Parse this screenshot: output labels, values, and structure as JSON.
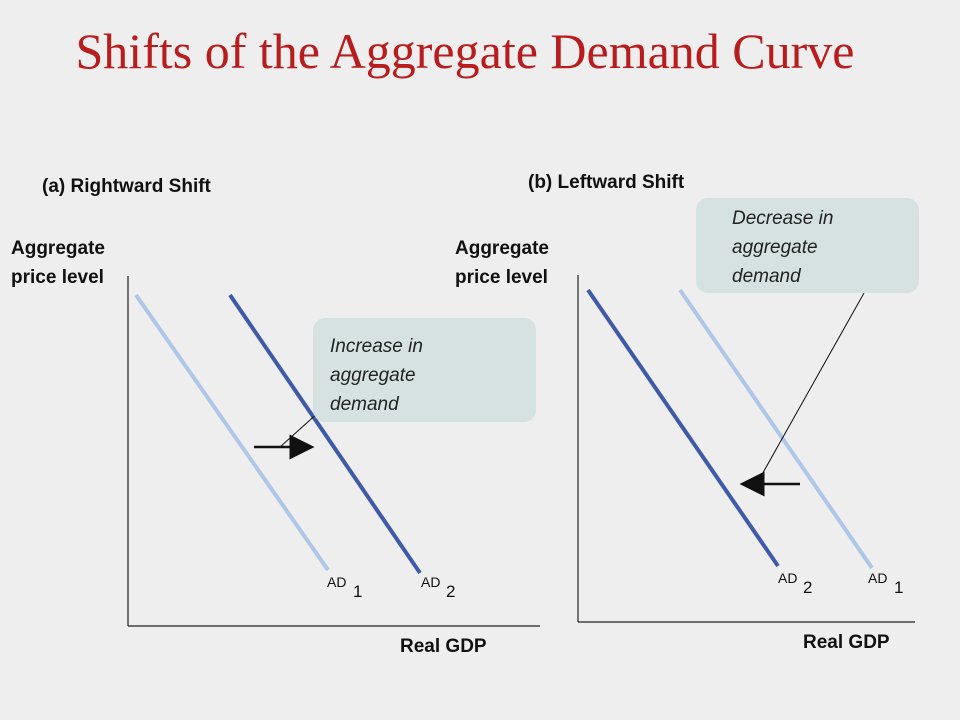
{
  "title": "Shifts of the Aggregate Demand Curve",
  "panel_a": {
    "label": "(a) Rightward Shift",
    "y_axis_line1": "Aggregate",
    "y_axis_line2": "price level",
    "x_axis": "Real GDP",
    "callout_lines": [
      "Increase in",
      "aggregate",
      "demand"
    ],
    "curve1_main": "AD",
    "curve1_sub": "1",
    "curve2_main": "AD",
    "curve2_sub": "2",
    "colors": {
      "ad1": "#aec6e8",
      "ad2": "#3e5aa8"
    }
  },
  "panel_b": {
    "label": "(b) Leftward Shift",
    "y_axis_line1": "Aggregate",
    "y_axis_line2": "price level",
    "x_axis": "Real GDP",
    "callout_lines": [
      "Decrease in",
      "aggregate",
      "demand"
    ],
    "curve2_main": "AD",
    "curve2_sub": "2",
    "curve1_main": "AD",
    "curve1_sub": "1",
    "colors": {
      "ad1": "#aec6e8",
      "ad2": "#3e5aa8"
    }
  }
}
